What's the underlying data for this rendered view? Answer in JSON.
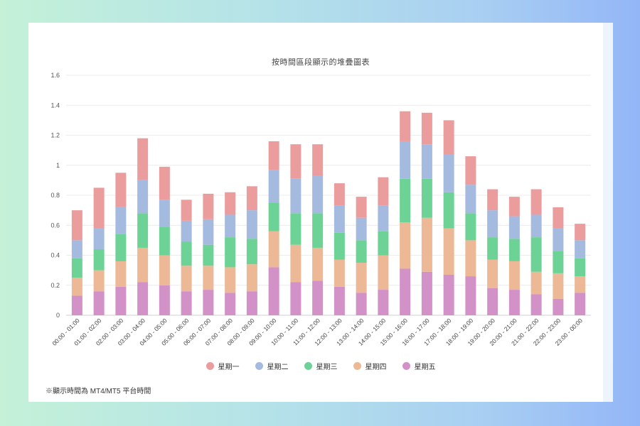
{
  "chart_data": {
    "type": "bar",
    "stacked": true,
    "title": "按時間區段顯示的堆疊圖表",
    "xlabel": "",
    "ylabel": "",
    "ylim": [
      0,
      1.6
    ],
    "yticks": [
      "0",
      "0.2",
      "0.4",
      "0.6",
      "0.8",
      "1",
      "1.2",
      "1.4",
      "1.6"
    ],
    "grid": true,
    "legend_position": "bottom",
    "categories": [
      "00:00 - 01:00",
      "01:00 - 02:00",
      "02:00 - 03:00",
      "03:00 - 04:00",
      "04:00 - 05:00",
      "05:00 - 06:00",
      "06:00 - 07:00",
      "07:00 - 08:00",
      "08:00 - 09:00",
      "09:00 - 10:00",
      "10:00 - 11:00",
      "11:00 - 12:00",
      "12:00 - 13:00",
      "13:00 - 14:00",
      "14:00 - 15:00",
      "15:00 - 16:00",
      "16:00 - 17:00",
      "17:00 - 18:00",
      "18:00 - 19:00",
      "19:00 - 20:00",
      "20:00 - 21:00",
      "21:00 - 22:00",
      "22:00 - 23:00",
      "23:00 - 00:00"
    ],
    "series": [
      {
        "name": "星期五",
        "color": "#d291c7",
        "values": [
          0.13,
          0.16,
          0.19,
          0.22,
          0.2,
          0.16,
          0.17,
          0.15,
          0.16,
          0.32,
          0.22,
          0.23,
          0.19,
          0.15,
          0.17,
          0.31,
          0.29,
          0.27,
          0.26,
          0.18,
          0.17,
          0.14,
          0.11,
          0.15
        ]
      },
      {
        "name": "星期四",
        "color": "#ecb896",
        "values": [
          0.12,
          0.14,
          0.17,
          0.23,
          0.2,
          0.17,
          0.16,
          0.17,
          0.18,
          0.24,
          0.25,
          0.22,
          0.18,
          0.2,
          0.23,
          0.31,
          0.36,
          0.31,
          0.24,
          0.19,
          0.19,
          0.15,
          0.17,
          0.11
        ]
      },
      {
        "name": "星期三",
        "color": "#6cd295",
        "values": [
          0.13,
          0.14,
          0.18,
          0.23,
          0.19,
          0.16,
          0.14,
          0.2,
          0.17,
          0.19,
          0.21,
          0.23,
          0.18,
          0.15,
          0.16,
          0.29,
          0.26,
          0.24,
          0.18,
          0.15,
          0.15,
          0.23,
          0.15,
          0.12
        ]
      },
      {
        "name": "星期二",
        "color": "#a5badf",
        "values": [
          0.12,
          0.14,
          0.18,
          0.22,
          0.18,
          0.14,
          0.17,
          0.15,
          0.19,
          0.22,
          0.23,
          0.25,
          0.18,
          0.15,
          0.17,
          0.25,
          0.23,
          0.25,
          0.19,
          0.18,
          0.15,
          0.15,
          0.15,
          0.12
        ]
      },
      {
        "name": "星期一",
        "color": "#eb9d9e",
        "values": [
          0.2,
          0.27,
          0.23,
          0.28,
          0.22,
          0.14,
          0.17,
          0.15,
          0.16,
          0.19,
          0.23,
          0.21,
          0.15,
          0.14,
          0.19,
          0.2,
          0.21,
          0.23,
          0.19,
          0.14,
          0.13,
          0.17,
          0.14,
          0.11
        ]
      }
    ]
  },
  "legend": [
    {
      "label": "星期一",
      "color": "#eb9d9e"
    },
    {
      "label": "星期二",
      "color": "#a5badf"
    },
    {
      "label": "星期三",
      "color": "#6cd295"
    },
    {
      "label": "星期四",
      "color": "#ecb896"
    },
    {
      "label": "星期五",
      "color": "#d291c7"
    }
  ],
  "footnote": "※顯示時間為 MT4/MT5 平台時間"
}
